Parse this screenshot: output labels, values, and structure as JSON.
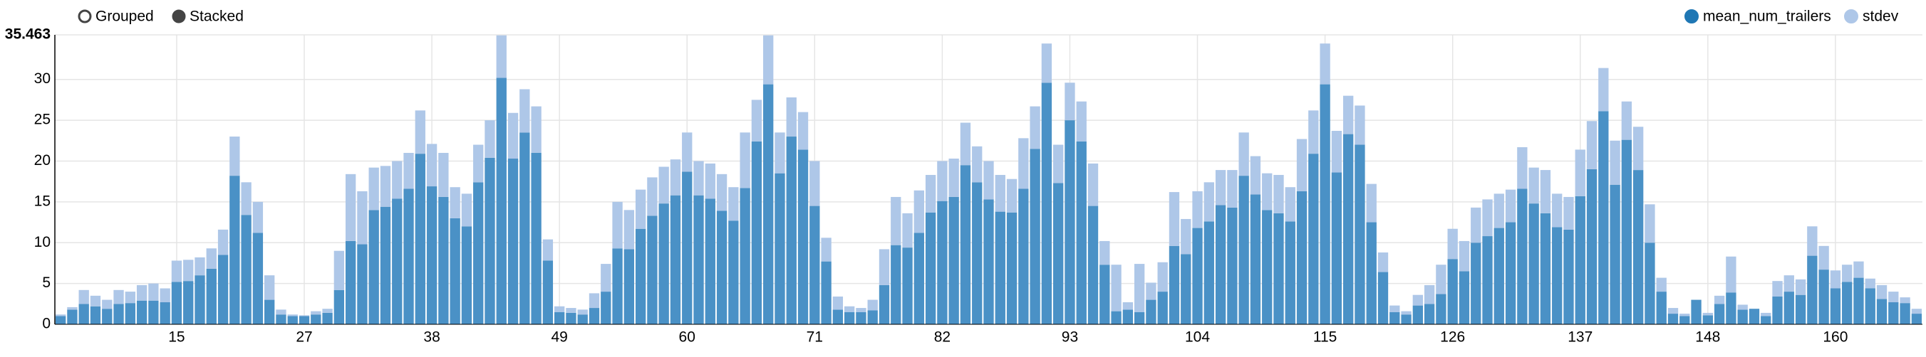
{
  "chart_data": {
    "type": "bar",
    "stacked": true,
    "grid": true,
    "legend": "top-right",
    "controls": [
      "Grouped",
      "Stacked"
    ],
    "categories": [
      null,
      null,
      null,
      null,
      null,
      null,
      null,
      null,
      null,
      null,
      "15",
      null,
      null,
      null,
      null,
      null,
      null,
      null,
      null,
      null,
      null,
      "27",
      null,
      null,
      null,
      null,
      null,
      null,
      null,
      null,
      null,
      null,
      "38",
      null,
      null,
      null,
      null,
      null,
      null,
      null,
      null,
      null,
      null,
      "49",
      null,
      null,
      null,
      null,
      null,
      null,
      null,
      null,
      null,
      null,
      "60",
      null,
      null,
      null,
      null,
      null,
      null,
      null,
      null,
      null,
      null,
      "71",
      null,
      null,
      null,
      null,
      null,
      null,
      null,
      null,
      null,
      null,
      "82",
      null,
      null,
      null,
      null,
      null,
      null,
      null,
      null,
      null,
      null,
      "93",
      null,
      null,
      null,
      null,
      null,
      null,
      null,
      null,
      null,
      null,
      "104",
      null,
      null,
      null,
      null,
      null,
      null,
      null,
      null,
      null,
      null,
      "115",
      null,
      null,
      null,
      null,
      null,
      null,
      null,
      null,
      null,
      null,
      "126",
      null,
      null,
      null,
      null,
      null,
      null,
      null,
      null,
      null,
      null,
      "137",
      null,
      null,
      null,
      null,
      null,
      null,
      null,
      null,
      null,
      null,
      "148",
      null,
      null,
      null,
      null,
      null,
      null,
      null,
      null,
      null,
      null,
      "160",
      null,
      null,
      null,
      null,
      null,
      null,
      null
    ],
    "series": [
      {
        "name": "mean_num_trailers",
        "color": "#4a91c6",
        "legend_color": "#1f77b4",
        "values": [
          1.0,
          1.8,
          2.5,
          2.2,
          1.9,
          2.5,
          2.6,
          2.9,
          2.9,
          2.7,
          5.2,
          5.3,
          6.0,
          6.8,
          8.5,
          18.2,
          13.4,
          11.2,
          3.0,
          1.2,
          1.0,
          1.0,
          1.2,
          1.4,
          4.2,
          10.2,
          9.8,
          14.0,
          14.4,
          15.4,
          16.6,
          20.9,
          16.9,
          15.6,
          13.0,
          12.0,
          17.4,
          20.4,
          30.2,
          20.3,
          23.5,
          21.0,
          7.8,
          1.5,
          1.4,
          1.2,
          2.0,
          4.0,
          9.3,
          9.2,
          11.7,
          13.3,
          14.8,
          15.8,
          18.7,
          15.8,
          15.4,
          13.9,
          12.7,
          16.7,
          22.4,
          29.4,
          18.5,
          23.0,
          21.4,
          14.5,
          7.7,
          1.8,
          1.5,
          1.5,
          1.7,
          4.8,
          9.7,
          9.4,
          11.2,
          13.7,
          15.1,
          15.6,
          19.5,
          17.4,
          15.3,
          13.8,
          13.7,
          16.6,
          21.5,
          29.6,
          17.3,
          25.0,
          22.4,
          14.5,
          7.3,
          1.6,
          1.8,
          1.5,
          3.0,
          4.0,
          9.6,
          8.6,
          11.8,
          12.6,
          14.6,
          14.3,
          18.2,
          15.9,
          14.0,
          13.6,
          12.6,
          16.3,
          20.9,
          29.4,
          18.6,
          23.3,
          22.0,
          12.5,
          6.4,
          1.5,
          1.2,
          2.3,
          2.5,
          3.7,
          8.0,
          6.5,
          10.0,
          10.8,
          11.8,
          12.5,
          16.6,
          14.8,
          13.6,
          11.9,
          11.6,
          15.7,
          19.0,
          26.1,
          17.1,
          22.6,
          18.9,
          10.0,
          4.0,
          1.3,
          1.0,
          3.0,
          1.1,
          2.5,
          3.9,
          1.8,
          1.9,
          1.0,
          3.4,
          4.0,
          3.6,
          8.4,
          6.7,
          4.4,
          5.2,
          5.7,
          4.4,
          3.1,
          2.7,
          2.6,
          1.3
        ]
      },
      {
        "name": "stdev",
        "color": "#aec7e8",
        "legend_color": "#aec7e8",
        "values": [
          0.2,
          0.3,
          1.7,
          1.3,
          1.1,
          1.7,
          1.4,
          1.9,
          2.1,
          1.7,
          2.6,
          2.6,
          2.2,
          2.5,
          3.1,
          4.8,
          4.0,
          3.8,
          3.0,
          0.6,
          0.2,
          0.1,
          0.4,
          0.5,
          4.8,
          8.2,
          6.5,
          5.2,
          5.0,
          4.6,
          4.4,
          5.3,
          5.2,
          5.4,
          3.8,
          4.0,
          4.6,
          4.6,
          5.2,
          5.6,
          5.3,
          5.7,
          2.6,
          0.7,
          0.6,
          0.6,
          1.8,
          3.4,
          5.7,
          4.8,
          4.8,
          4.7,
          4.5,
          4.4,
          4.8,
          4.2,
          4.3,
          4.5,
          4.1,
          6.8,
          5.1,
          6.0,
          5.0,
          4.8,
          4.6,
          5.5,
          2.9,
          1.6,
          0.7,
          0.5,
          1.3,
          4.4,
          5.9,
          4.2,
          5.2,
          4.6,
          4.9,
          4.7,
          5.2,
          4.4,
          4.7,
          4.5,
          4.1,
          6.2,
          5.2,
          4.8,
          4.7,
          4.6,
          4.9,
          5.2,
          2.9,
          5.7,
          0.9,
          5.9,
          2.1,
          3.6,
          6.6,
          4.3,
          4.5,
          4.8,
          4.3,
          4.6,
          5.3,
          4.7,
          4.5,
          4.7,
          4.2,
          6.4,
          5.3,
          5.0,
          5.1,
          4.7,
          4.8,
          4.7,
          2.4,
          0.8,
          0.4,
          1.3,
          2.3,
          3.6,
          3.7,
          3.7,
          4.3,
          4.5,
          4.2,
          4.0,
          5.1,
          4.4,
          5.3,
          4.1,
          4.0,
          5.7,
          5.9,
          5.3,
          5.4,
          4.7,
          5.3,
          4.7,
          1.7,
          0.7,
          0.3,
          0.0,
          0.3,
          1.0,
          4.4,
          0.6,
          0.0,
          0.4,
          1.9,
          2.0,
          1.9,
          3.6,
          2.9,
          2.2,
          2.1,
          2.0,
          1.2,
          1.7,
          1.3,
          0.7,
          0.6
        ]
      }
    ],
    "ylim": [
      0,
      35.463
    ],
    "yticks": [
      0,
      5,
      10,
      15,
      20,
      25,
      30,
      35.463
    ]
  }
}
